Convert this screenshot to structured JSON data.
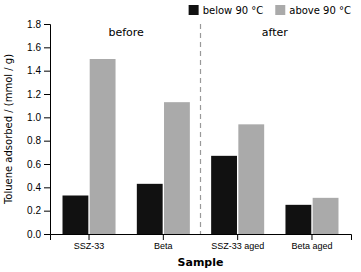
{
  "chart_data": {
    "type": "bar",
    "categories": [
      "SSZ-33",
      "Beta",
      "SSZ-33 aged",
      "Beta aged"
    ],
    "series": [
      {
        "name": "below 90 °C",
        "color": "#111111",
        "values": [
          0.33,
          0.43,
          0.67,
          0.25
        ]
      },
      {
        "name": "above 90 °C",
        "color": "#aaaaaa",
        "values": [
          1.5,
          1.13,
          0.94,
          0.31
        ]
      }
    ],
    "xlabel": "Sample",
    "ylabel": "Toluene adsorbed / (mmol / g)",
    "annotations": [
      "before",
      "after"
    ],
    "ylim": [
      0.0,
      1.8
    ],
    "yticks": [
      {
        "value": 0.0,
        "label": "0.0"
      },
      0.2,
      0.4,
      0.6,
      0.8,
      {
        "value": 1.0,
        "label": "1.0"
      },
      1.2,
      1.4,
      1.6,
      1.8
    ],
    "legend": "upper right",
    "grid": false
  }
}
